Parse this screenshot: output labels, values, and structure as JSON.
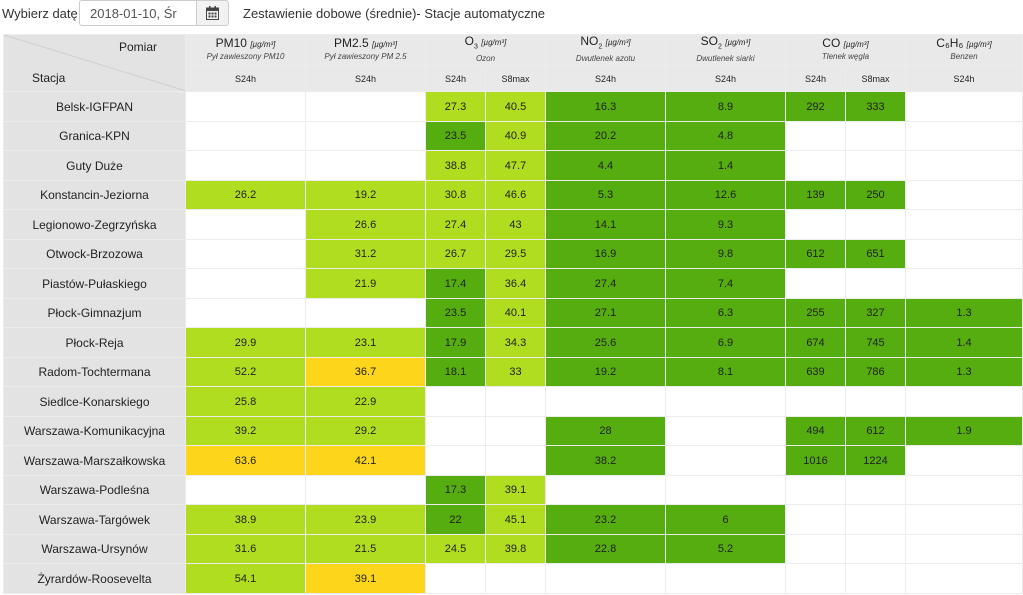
{
  "toolbar": {
    "date_label": "Wybierz datę:",
    "date_value": "2018-01-10, Śr",
    "calendar_icon": "calendar-icon",
    "title": "Zestawienie dobowe (średnie)- Stacje automatyczne"
  },
  "header": {
    "corner_measure": "Pomiar",
    "corner_station": "Stacja",
    "pollutants": [
      {
        "name": "PM10",
        "sub": "",
        "unit": "[µg/m³]",
        "desc": "Pył zawieszony PM10",
        "cols": [
          "S24h"
        ]
      },
      {
        "name": "PM2.5",
        "sub": "",
        "unit": "[µg/m³]",
        "desc": "Pył zawieszony PM 2.5",
        "cols": [
          "S24h"
        ]
      },
      {
        "name": "O",
        "sub": "3",
        "unit": "[µg/m³]",
        "desc": "Ozon",
        "cols": [
          "S24h",
          "S8max"
        ]
      },
      {
        "name": "NO",
        "sub": "2",
        "unit": "[µg/m³]",
        "desc": "Dwutlenek azotu",
        "cols": [
          "S24h"
        ]
      },
      {
        "name": "SO",
        "sub": "2",
        "unit": "[µg/m³]",
        "desc": "Dwutlenek siarki",
        "cols": [
          "S24h"
        ]
      },
      {
        "name": "CO",
        "sub": "",
        "unit": "[µg/m³]",
        "desc": "Tlenek węgla",
        "cols": [
          "S24h",
          "S8max"
        ]
      },
      {
        "name": "C₆H₆",
        "sub": "",
        "unit": "[µg/m³]",
        "desc": "Benzen",
        "cols": [
          "S24h"
        ]
      }
    ]
  },
  "colors": {
    "dark_green": "#55ad10",
    "light_green": "#b0dd1f",
    "yellow": "#fdd51b",
    "empty": "#ffffff"
  },
  "rows": [
    {
      "station": "Belsk-IGFPAN",
      "cells": [
        [
          "",
          ""
        ],
        [
          "",
          ""
        ],
        [
          "27.3",
          "lg"
        ],
        [
          "40.5",
          "lg"
        ],
        [
          "16.3",
          "dg"
        ],
        [
          "8.9",
          "dg"
        ],
        [
          "292",
          "dg"
        ],
        [
          "333",
          "dg"
        ],
        [
          "",
          ""
        ]
      ]
    },
    {
      "station": "Granica-KPN",
      "cells": [
        [
          "",
          ""
        ],
        [
          "",
          ""
        ],
        [
          "23.5",
          "dg"
        ],
        [
          "40.9",
          "lg"
        ],
        [
          "20.2",
          "dg"
        ],
        [
          "4.8",
          "dg"
        ],
        [
          "",
          ""
        ],
        [
          "",
          ""
        ],
        [
          "",
          ""
        ]
      ]
    },
    {
      "station": "Guty Duże",
      "cells": [
        [
          "",
          ""
        ],
        [
          "",
          ""
        ],
        [
          "38.8",
          "lg"
        ],
        [
          "47.7",
          "lg"
        ],
        [
          "4.4",
          "dg"
        ],
        [
          "1.4",
          "dg"
        ],
        [
          "",
          ""
        ],
        [
          "",
          ""
        ],
        [
          "",
          ""
        ]
      ]
    },
    {
      "station": "Konstancin-Jeziorna",
      "cells": [
        [
          "26.2",
          "lg"
        ],
        [
          "19.2",
          "lg"
        ],
        [
          "30.8",
          "lg"
        ],
        [
          "46.6",
          "lg"
        ],
        [
          "5.3",
          "dg"
        ],
        [
          "12.6",
          "dg"
        ],
        [
          "139",
          "dg"
        ],
        [
          "250",
          "dg"
        ],
        [
          "",
          ""
        ]
      ]
    },
    {
      "station": "Legionowo-Zegrzyńska",
      "cells": [
        [
          "",
          ""
        ],
        [
          "26.6",
          "lg"
        ],
        [
          "27.4",
          "lg"
        ],
        [
          "43",
          "lg"
        ],
        [
          "14.1",
          "dg"
        ],
        [
          "9.3",
          "dg"
        ],
        [
          "",
          ""
        ],
        [
          "",
          ""
        ],
        [
          "",
          ""
        ]
      ]
    },
    {
      "station": "Otwock-Brzozowa",
      "cells": [
        [
          "",
          ""
        ],
        [
          "31.2",
          "lg"
        ],
        [
          "26.7",
          "lg"
        ],
        [
          "29.5",
          "lg"
        ],
        [
          "16.9",
          "dg"
        ],
        [
          "9.8",
          "dg"
        ],
        [
          "612",
          "dg"
        ],
        [
          "651",
          "dg"
        ],
        [
          "",
          ""
        ]
      ]
    },
    {
      "station": "Piastów-Pułaskiego",
      "cells": [
        [
          "",
          ""
        ],
        [
          "21.9",
          "lg"
        ],
        [
          "17.4",
          "dg"
        ],
        [
          "36.4",
          "lg"
        ],
        [
          "27.4",
          "dg"
        ],
        [
          "7.4",
          "dg"
        ],
        [
          "",
          ""
        ],
        [
          "",
          ""
        ],
        [
          "",
          ""
        ]
      ]
    },
    {
      "station": "Płock-Gimnazjum",
      "cells": [
        [
          "",
          ""
        ],
        [
          "",
          ""
        ],
        [
          "23.5",
          "dg"
        ],
        [
          "40.1",
          "lg"
        ],
        [
          "27.1",
          "dg"
        ],
        [
          "6.3",
          "dg"
        ],
        [
          "255",
          "dg"
        ],
        [
          "327",
          "dg"
        ],
        [
          "1.3",
          "dg"
        ]
      ]
    },
    {
      "station": "Płock-Reja",
      "cells": [
        [
          "29.9",
          "lg"
        ],
        [
          "23.1",
          "lg"
        ],
        [
          "17.9",
          "dg"
        ],
        [
          "34.3",
          "lg"
        ],
        [
          "25.6",
          "dg"
        ],
        [
          "6.9",
          "dg"
        ],
        [
          "674",
          "dg"
        ],
        [
          "745",
          "dg"
        ],
        [
          "1.4",
          "dg"
        ]
      ]
    },
    {
      "station": "Radom-Tochtermana",
      "cells": [
        [
          "52.2",
          "lg"
        ],
        [
          "36.7",
          "y"
        ],
        [
          "18.1",
          "dg"
        ],
        [
          "33",
          "lg"
        ],
        [
          "19.2",
          "dg"
        ],
        [
          "8.1",
          "dg"
        ],
        [
          "639",
          "dg"
        ],
        [
          "786",
          "dg"
        ],
        [
          "1.3",
          "dg"
        ]
      ]
    },
    {
      "station": "Siedlce-Konarskiego",
      "cells": [
        [
          "25.8",
          "lg"
        ],
        [
          "22.9",
          "lg"
        ],
        [
          "",
          ""
        ],
        [
          "",
          ""
        ],
        [
          "",
          ""
        ],
        [
          "",
          ""
        ],
        [
          "",
          ""
        ],
        [
          "",
          ""
        ],
        [
          "",
          ""
        ]
      ]
    },
    {
      "station": "Warszawa-Komunikacyjna",
      "cells": [
        [
          "39.2",
          "lg"
        ],
        [
          "29.2",
          "lg"
        ],
        [
          "",
          ""
        ],
        [
          "",
          ""
        ],
        [
          "28",
          "dg"
        ],
        [
          "",
          ""
        ],
        [
          "494",
          "dg"
        ],
        [
          "612",
          "dg"
        ],
        [
          "1.9",
          "dg"
        ]
      ]
    },
    {
      "station": "Warszawa-Marszałkowska",
      "cells": [
        [
          "63.6",
          "y"
        ],
        [
          "42.1",
          "y"
        ],
        [
          "",
          ""
        ],
        [
          "",
          ""
        ],
        [
          "38.2",
          "dg"
        ],
        [
          "",
          ""
        ],
        [
          "1016",
          "dg"
        ],
        [
          "1224",
          "dg"
        ],
        [
          "",
          ""
        ]
      ]
    },
    {
      "station": "Warszawa-Podleśna",
      "cells": [
        [
          "",
          ""
        ],
        [
          "",
          ""
        ],
        [
          "17.3",
          "dg"
        ],
        [
          "39.1",
          "lg"
        ],
        [
          "",
          ""
        ],
        [
          "",
          ""
        ],
        [
          "",
          ""
        ],
        [
          "",
          ""
        ],
        [
          "",
          ""
        ]
      ]
    },
    {
      "station": "Warszawa-Targówek",
      "cells": [
        [
          "38.9",
          "lg"
        ],
        [
          "23.9",
          "lg"
        ],
        [
          "22",
          "dg"
        ],
        [
          "45.1",
          "lg"
        ],
        [
          "23.2",
          "dg"
        ],
        [
          "6",
          "dg"
        ],
        [
          "",
          ""
        ],
        [
          "",
          ""
        ],
        [
          "",
          ""
        ]
      ]
    },
    {
      "station": "Warszawa-Ursynów",
      "cells": [
        [
          "31.6",
          "lg"
        ],
        [
          "21.5",
          "lg"
        ],
        [
          "24.5",
          "lg"
        ],
        [
          "39.8",
          "lg"
        ],
        [
          "22.8",
          "dg"
        ],
        [
          "5.2",
          "dg"
        ],
        [
          "",
          ""
        ],
        [
          "",
          ""
        ],
        [
          "",
          ""
        ]
      ]
    },
    {
      "station": "Żyrardów-Roosevelta",
      "cells": [
        [
          "54.1",
          "lg"
        ],
        [
          "39.1",
          "y"
        ],
        [
          "",
          ""
        ],
        [
          "",
          ""
        ],
        [
          "",
          ""
        ],
        [
          "",
          ""
        ],
        [
          "",
          ""
        ],
        [
          "",
          ""
        ],
        [
          "",
          ""
        ]
      ]
    }
  ]
}
